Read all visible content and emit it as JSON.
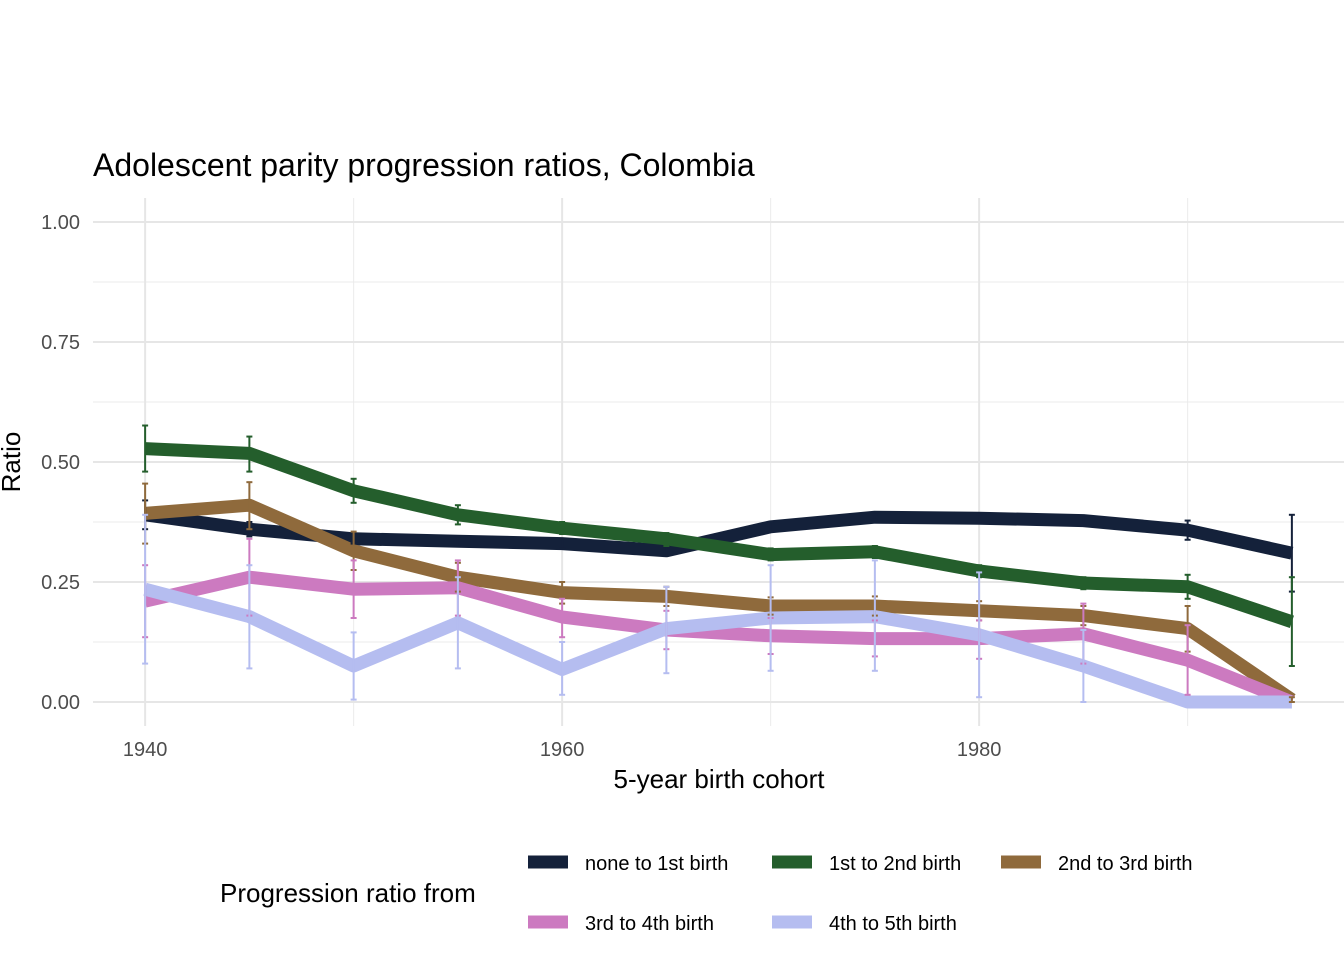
{
  "chart_data": {
    "type": "line",
    "title": "Adolescent parity progression ratios,  Colombia",
    "xlabel": "5-year birth cohort",
    "ylabel": "Ratio",
    "xlim": [
      1937.5,
      1997.5
    ],
    "ylim": [
      -0.05,
      1.05
    ],
    "x_ticks": [
      1940,
      1960,
      1980
    ],
    "x_tick_labels": [
      "1940",
      "1960",
      "1980"
    ],
    "y_ticks": [
      0,
      0.25,
      0.5,
      0.75,
      1.0
    ],
    "y_tick_labels": [
      "0.00",
      "0.25",
      "0.50",
      "0.75",
      "1.00"
    ],
    "grid": true,
    "legend_position": "bottom",
    "legend_title": "Progression ratio from",
    "x": [
      1940,
      1945,
      1950,
      1955,
      1960,
      1965,
      1970,
      1975,
      1980,
      1985,
      1990,
      1995
    ],
    "series": [
      {
        "name": "none to 1st birth",
        "color": "#14213a",
        "values": [
          0.39,
          0.36,
          0.34,
          0.335,
          0.33,
          0.315,
          0.365,
          0.385,
          0.383,
          0.378,
          0.358,
          0.31
        ],
        "lower": [
          0.36,
          0.345,
          0.33,
          0.325,
          0.32,
          0.305,
          0.355,
          0.38,
          0.376,
          0.368,
          0.338,
          0.23
        ],
        "upper": [
          0.42,
          0.375,
          0.35,
          0.345,
          0.34,
          0.325,
          0.375,
          0.39,
          0.39,
          0.388,
          0.378,
          0.39
        ]
      },
      {
        "name": "1st to 2nd birth",
        "color": "#245e2c",
        "values": [
          0.528,
          0.518,
          0.44,
          0.39,
          0.362,
          0.34,
          0.307,
          0.313,
          0.273,
          0.248,
          0.24,
          0.167
        ],
        "lower": [
          0.48,
          0.48,
          0.415,
          0.37,
          0.35,
          0.325,
          0.295,
          0.3,
          0.26,
          0.235,
          0.215,
          0.075
        ],
        "upper": [
          0.576,
          0.553,
          0.465,
          0.41,
          0.375,
          0.352,
          0.32,
          0.325,
          0.285,
          0.26,
          0.265,
          0.26
        ]
      },
      {
        "name": "2nd to 3rd birth",
        "color": "#8f6a3c",
        "values": [
          0.393,
          0.41,
          0.315,
          0.26,
          0.228,
          0.22,
          0.2,
          0.2,
          0.19,
          0.18,
          0.153,
          0.005
        ],
        "lower": [
          0.33,
          0.36,
          0.275,
          0.23,
          0.205,
          0.2,
          0.182,
          0.18,
          0.17,
          0.16,
          0.105,
          0.0
        ],
        "upper": [
          0.455,
          0.458,
          0.355,
          0.29,
          0.25,
          0.24,
          0.218,
          0.22,
          0.21,
          0.2,
          0.2,
          0.01
        ]
      },
      {
        "name": "3rd to 4th birth",
        "color": "#cc7ac0",
        "values": [
          0.21,
          0.26,
          0.235,
          0.238,
          0.177,
          0.15,
          0.138,
          0.132,
          0.132,
          0.142,
          0.087,
          0.0
        ],
        "lower": [
          0.135,
          0.18,
          0.175,
          0.18,
          0.135,
          0.11,
          0.1,
          0.095,
          0.09,
          0.08,
          0.015,
          0.0
        ],
        "upper": [
          0.285,
          0.34,
          0.295,
          0.295,
          0.215,
          0.19,
          0.175,
          0.17,
          0.17,
          0.205,
          0.16,
          0.0
        ]
      },
      {
        "name": "4th to 5th birth",
        "color": "#b5bdf0",
        "values": [
          0.235,
          0.178,
          0.075,
          0.165,
          0.068,
          0.153,
          0.175,
          0.178,
          0.14,
          0.075,
          0.0,
          0.0
        ],
        "lower": [
          0.08,
          0.07,
          0.005,
          0.07,
          0.015,
          0.06,
          0.065,
          0.065,
          0.01,
          0.0,
          0.0,
          0.0
        ],
        "upper": [
          0.39,
          0.285,
          0.145,
          0.26,
          0.125,
          0.24,
          0.285,
          0.295,
          0.27,
          0.15,
          0.0,
          0.0
        ]
      }
    ]
  }
}
